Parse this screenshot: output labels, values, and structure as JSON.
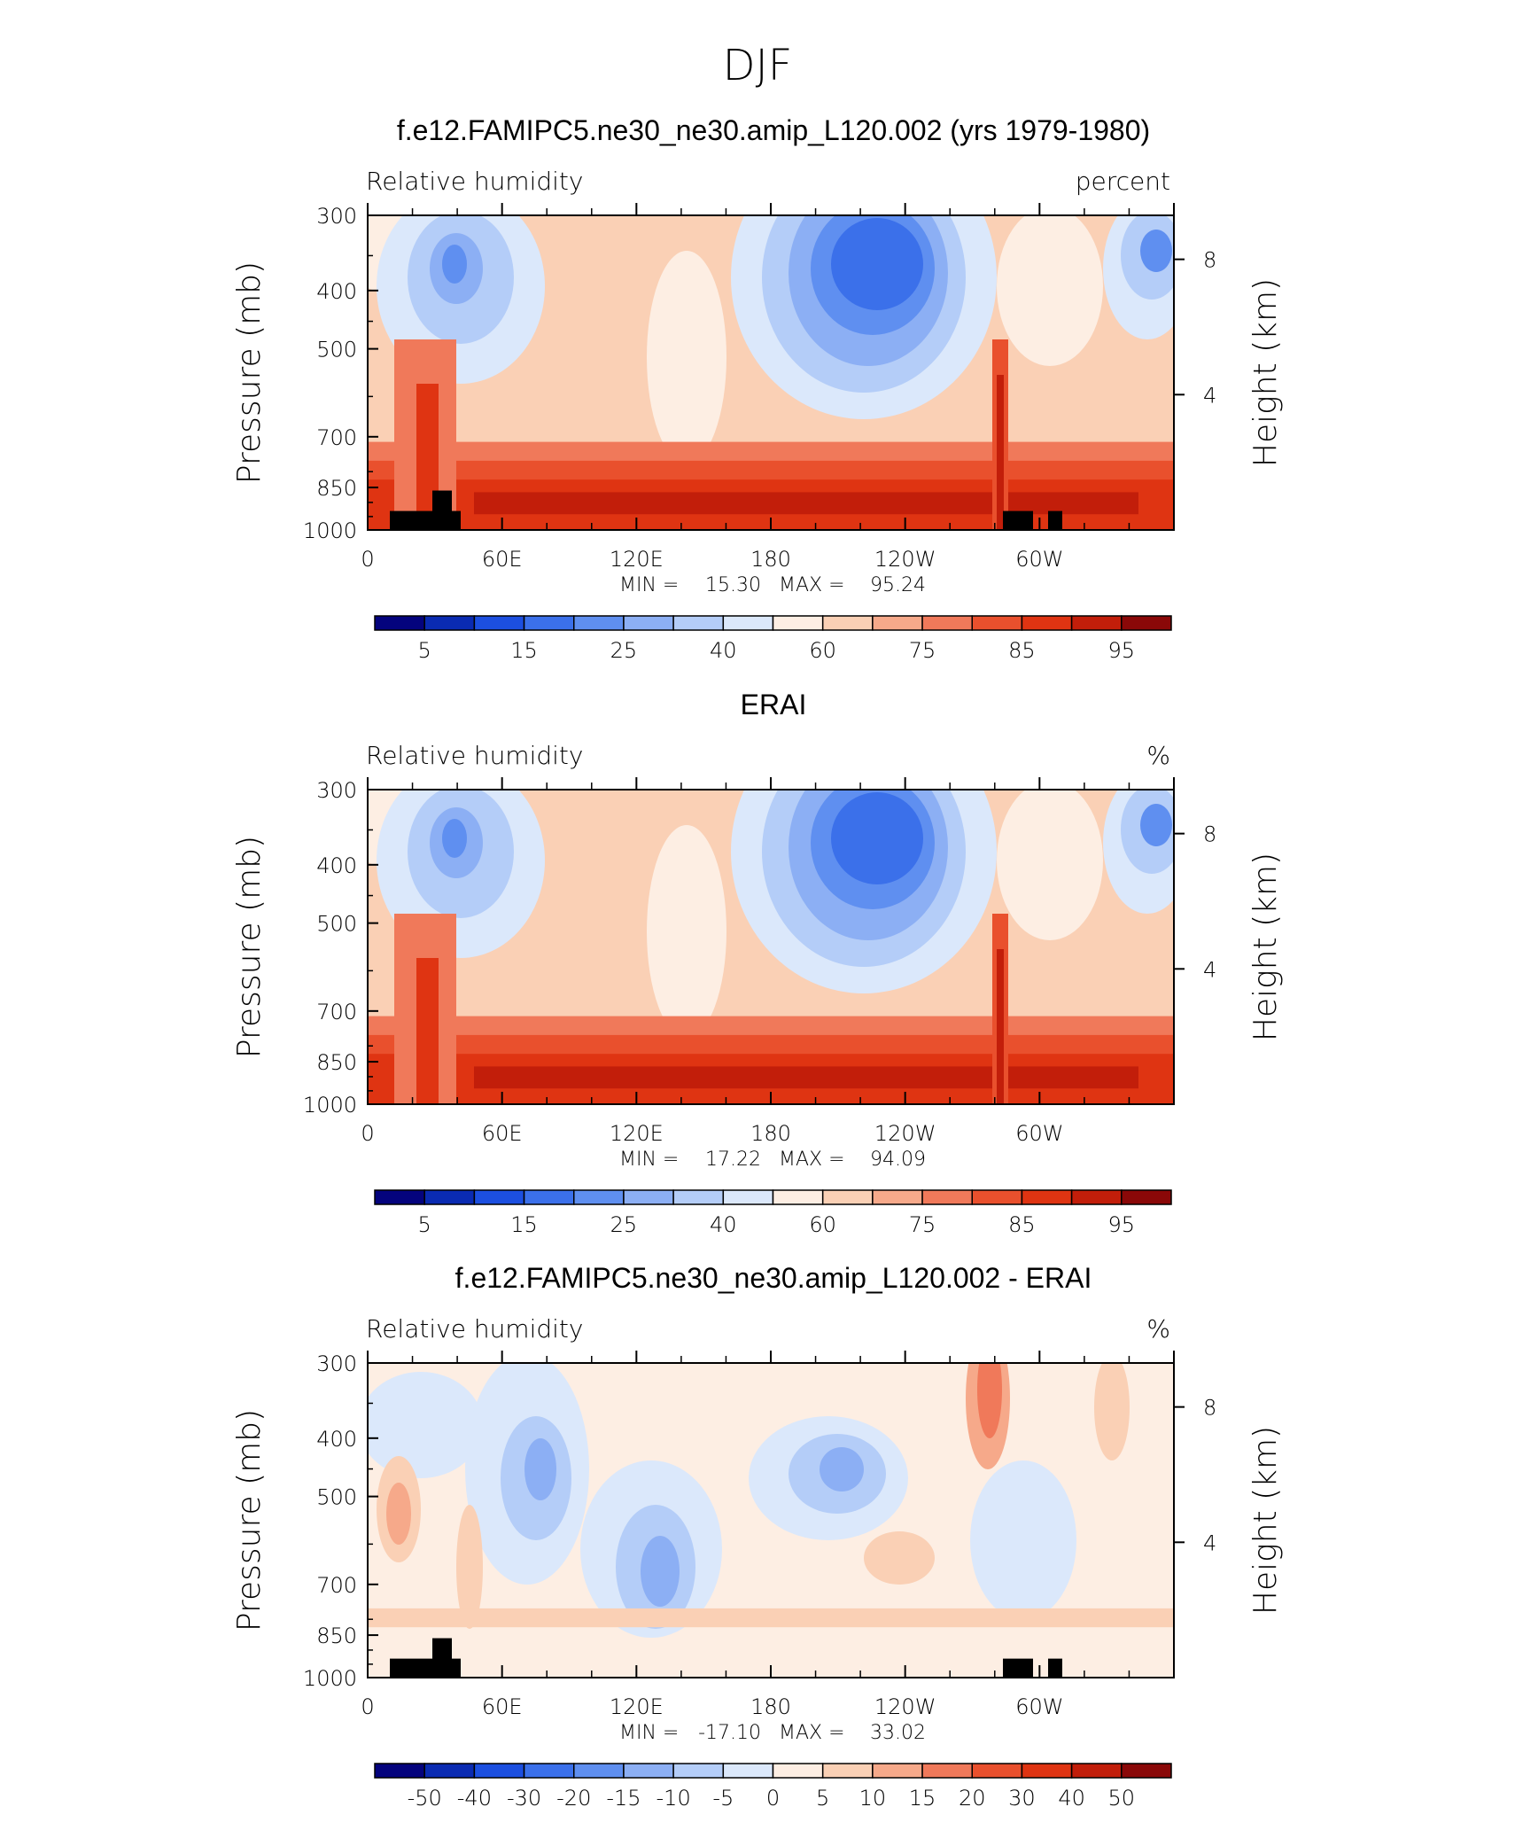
{
  "chart_data": {
    "type": "heatmap",
    "title": "DJF",
    "colors": {
      "main": [
        "#04037d",
        "#0a2bb2",
        "#1c4fe0",
        "#3b70ea",
        "#5f8ff0",
        "#8caff4",
        "#b4cdf8",
        "#dbe8fb",
        "#fdeee3",
        "#fad0b5",
        "#f6a98a",
        "#f0795a",
        "#e9502d",
        "#df3412",
        "#c21e0a",
        "#8a0808"
      ],
      "land": "#000000"
    },
    "panels": [
      {
        "title": "f.e12.FAMIPC5.ne30_ne30.amip_L120.002 (yrs 1979-1980)",
        "left_label": "Relative humidity",
        "right_label": "percent",
        "ylabel": "Pressure (mb)",
        "ylabel_right": "Height (km)",
        "yticks": [
          "300",
          "400",
          "500",
          "700",
          "850",
          "1000"
        ],
        "yticks_right": [
          "8",
          "4"
        ],
        "xticks": [
          "0",
          "60E",
          "120E",
          "180",
          "120W",
          "60W"
        ],
        "min_label": "MIN =",
        "min_value": "15.30",
        "max_label": "MAX =",
        "max_value": "95.24",
        "colorbar_labels": [
          "5",
          "15",
          "25",
          "40",
          "60",
          "75",
          "85",
          "95"
        ],
        "has_land": true,
        "stats": {
          "min": 15.3,
          "max": 95.24
        }
      },
      {
        "title": "ERAI",
        "left_label": "Relative humidity",
        "right_label": "%",
        "ylabel": "Pressure (mb)",
        "ylabel_right": "Height (km)",
        "yticks": [
          "300",
          "400",
          "500",
          "700",
          "850",
          "1000"
        ],
        "yticks_right": [
          "8",
          "4"
        ],
        "xticks": [
          "0",
          "60E",
          "120E",
          "180",
          "120W",
          "60W"
        ],
        "min_label": "MIN =",
        "min_value": "17.22",
        "max_label": "MAX =",
        "max_value": "94.09",
        "colorbar_labels": [
          "5",
          "15",
          "25",
          "40",
          "60",
          "75",
          "85",
          "95"
        ],
        "has_land": false,
        "stats": {
          "min": 17.22,
          "max": 94.09
        }
      },
      {
        "title": "f.e12.FAMIPC5.ne30_ne30.amip_L120.002 - ERAI",
        "left_label": "Relative humidity",
        "right_label": "%",
        "ylabel": "Pressure (mb)",
        "ylabel_right": "Height (km)",
        "yticks": [
          "300",
          "400",
          "500",
          "700",
          "850",
          "1000"
        ],
        "yticks_right": [
          "8",
          "4"
        ],
        "xticks": [
          "0",
          "60E",
          "120E",
          "180",
          "120W",
          "60W"
        ],
        "min_label": "MIN =",
        "min_value": "-17.10",
        "max_label": "MAX =",
        "max_value": "33.02",
        "colorbar_labels": [
          "-50",
          "-40",
          "-30",
          "-20",
          "-15",
          "-10",
          "-5",
          "0",
          "5",
          "10",
          "15",
          "20",
          "30",
          "40",
          "50"
        ],
        "has_land": true,
        "stats": {
          "min": -17.1,
          "max": 33.02
        }
      }
    ]
  }
}
